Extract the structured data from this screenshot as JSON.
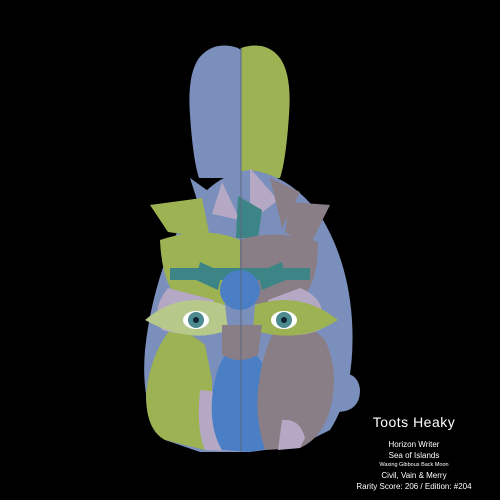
{
  "character": {
    "name": "Toots Heaky",
    "trait_1": "Horizon Writer",
    "trait_2": "Sea of Islands",
    "moon": "Waxing Gibbous Back Moon",
    "personality": "Civil, Vain & Merry",
    "rarity": "Rarity Score: 206 / Edition: #204"
  },
  "palette": {
    "background": "#000000",
    "blue": "#7a8fbb",
    "green": "#9db253",
    "lavender": "#b4a8c4",
    "taupe": "#8a7e86",
    "eye_teal": "#4c8a90",
    "bright_blue": "#4a7fc6",
    "teal": "#3d8486"
  },
  "icons": {
    "figure": "rabbit-figure-icon"
  }
}
